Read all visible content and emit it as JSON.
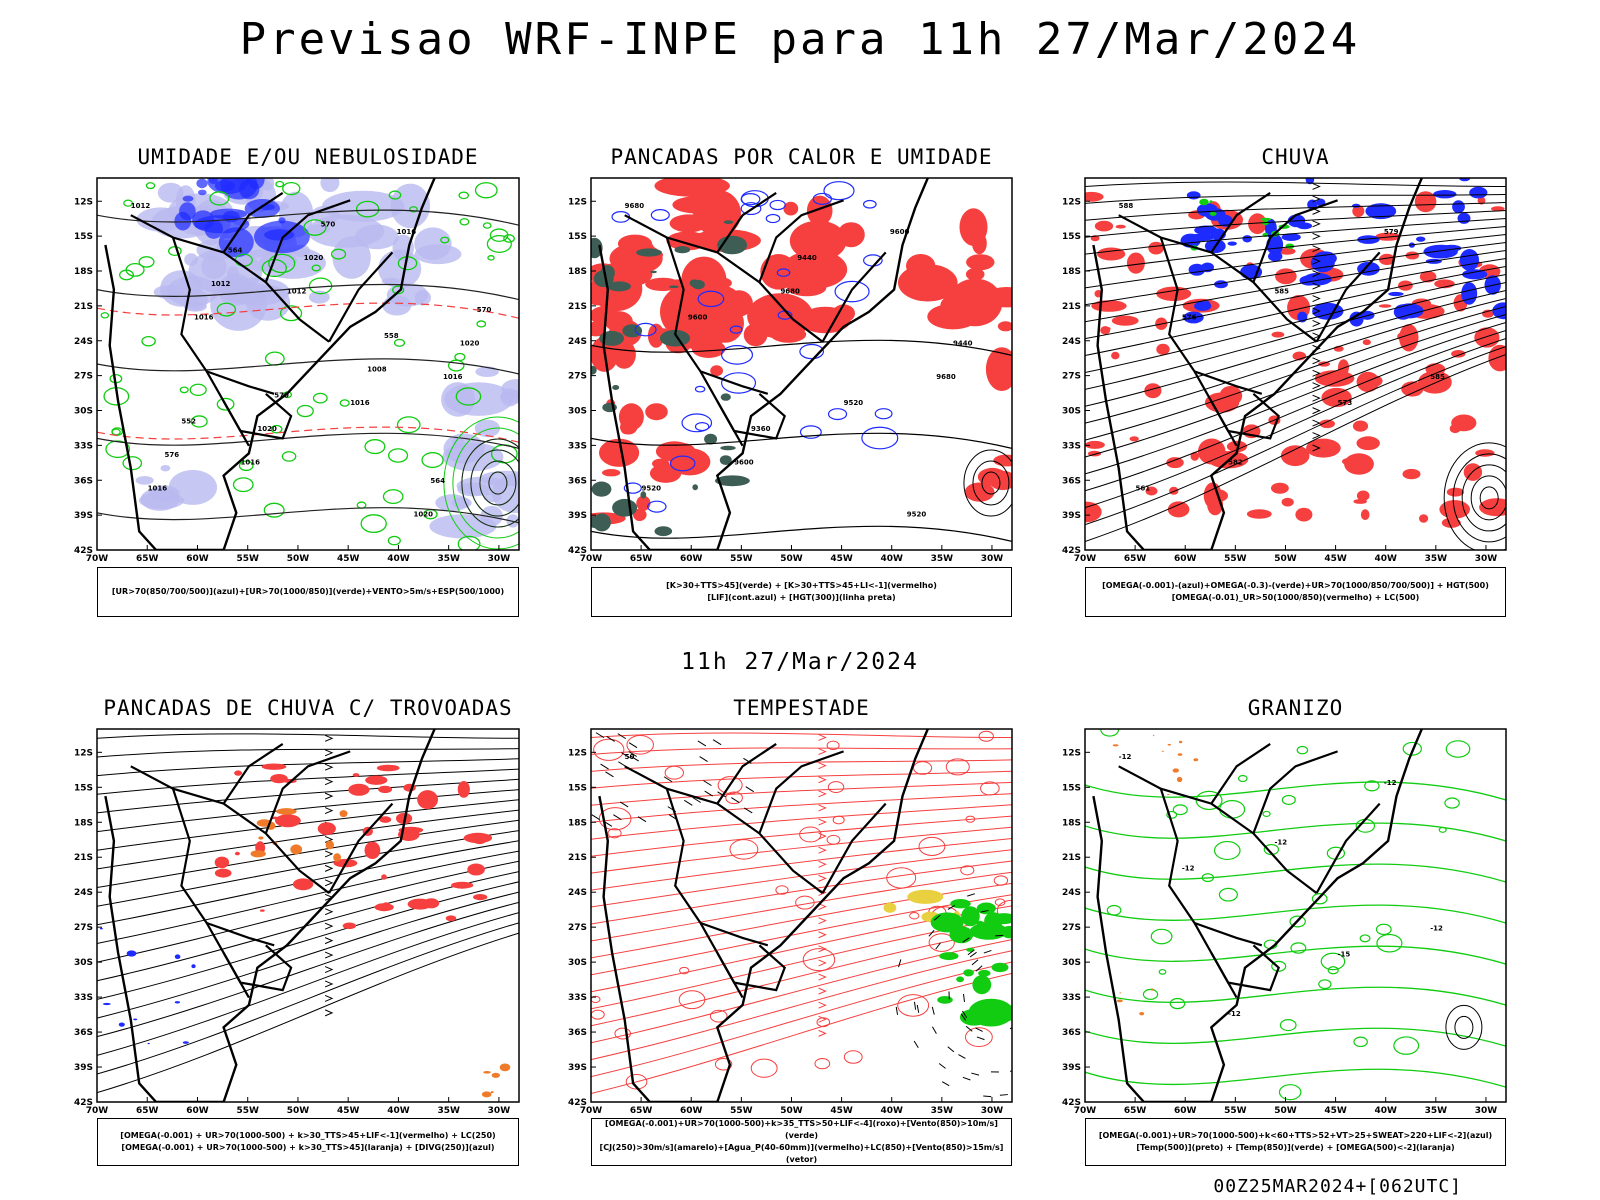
{
  "title": "Previsao WRF-INPE  para 11h 27/Mar/2024",
  "mid_title": "11h 27/Mar/2024",
  "footer": "00Z25MAR2024+[062UTC]",
  "axes": {
    "lat_labels": [
      "12S",
      "15S",
      "18S",
      "21S",
      "24S",
      "27S",
      "30S",
      "33S",
      "36S",
      "39S",
      "42S"
    ],
    "lon_labels": [
      "70W",
      "65W",
      "60W",
      "55W",
      "50W",
      "45W",
      "40W",
      "35W",
      "30W"
    ],
    "lat_range": [
      -42,
      -10
    ],
    "lon_range": [
      -70,
      -28
    ]
  },
  "colors": {
    "blue": "#1e2bff",
    "light_blue": "#b9b9f0",
    "green": "#11cc11",
    "red": "#f5403f",
    "dark_teal": "#3d5d55",
    "orange": "#ee7a2a",
    "yellow": "#e8d040",
    "black": "#000000"
  },
  "panels": [
    {
      "title": "UMIDADE E/OU NEBULOSIDADE",
      "legend": [
        "[UR>70(850/700/500)](azul)+[UR>70(1000/850)](verde)+VENTO>5m/s+ESP(500/1000)"
      ],
      "contour_labels": [
        "1012",
        "1012",
        "1016",
        "1016",
        "1016",
        "1016",
        "1016",
        "1016",
        "1020",
        "1020",
        "1020",
        "1020",
        "1012",
        "1008",
        "576",
        "570",
        "570",
        "570",
        "564",
        "564",
        "558",
        "552"
      ]
    },
    {
      "title": "PANCADAS POR CALOR E UMIDADE",
      "legend": [
        "[K>30+TTS>45](verde) + [K>30+TTS>45+LI<-1](vermelho)",
        "[LIF](cont.azul) + [HGT(300)](linha preta)"
      ],
      "contour_labels": [
        "9680",
        "9680",
        "9680",
        "9600",
        "9600",
        "9600",
        "9520",
        "9520",
        "9440",
        "9440",
        "9360",
        "9520"
      ]
    },
    {
      "title": "CHUVA",
      "legend": [
        "[OMEGA(-0.001)-(azul)+OMEGA(-0.3)-(verde)+UR>70(1000/850/700/500)] + HGT(500)",
        "[OMEGA(-0.01)_UR>50(1000/850)(vermelho) + LC(500)"
      ],
      "contour_labels": [
        "588",
        "585",
        "585",
        "582",
        "579",
        "576",
        "573",
        "561"
      ]
    },
    {
      "title": "PANCADAS DE CHUVA C/ TROVOADAS",
      "legend": [
        "[OMEGA(-0.001) + UR>70(1000-500) + k>30_TTS>45+LIF<-1](vermelho) + LC(250)",
        "[OMEGA(-0.001) + UR>70(1000-500) + k>30_TTS>45](laranja) + [DIVG(250)](azul)"
      ],
      "contour_labels": []
    },
    {
      "title": "TEMPESTADE",
      "legend": [
        "[OMEGA(-0.001)+UR>70(1000-500)+k>35_TTS>50+LIF<-4](roxo)+[Vento(850)>10m/s](verde)",
        "[CJ(250)>30m/s](amarelo)+[Agua_P(40-60mm)](vermelho)+LC(850)+[Vento(850)>15m/s](vetor)"
      ],
      "contour_labels": [
        "50"
      ]
    },
    {
      "title": "GRANIZO",
      "legend": [
        "[OMEGA(-0.001)+UR>70(1000-500)+k<60+TTS>52+VT>25+SWEAT>220+LIF<-2](azul)",
        "[Temp(500)](preto) + [Temp(850)](verde) + [OMEGA(500)<-2](laranja)"
      ],
      "contour_labels": [
        "-12",
        "-12",
        "-12",
        "-12",
        "-12",
        "-12",
        "-15"
      ]
    }
  ]
}
